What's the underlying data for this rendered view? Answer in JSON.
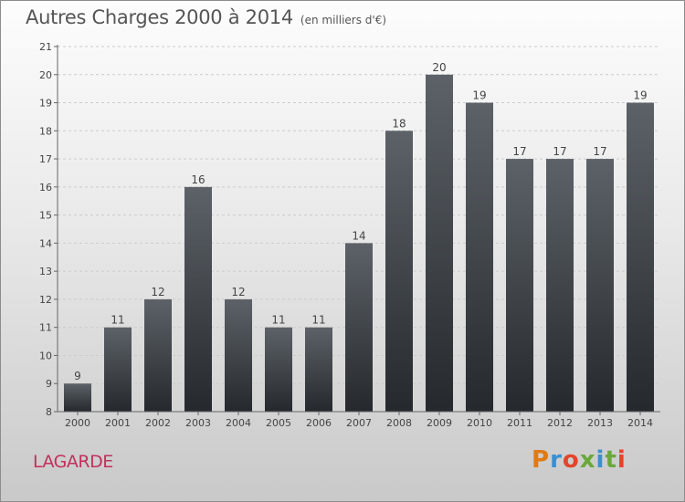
{
  "header": {
    "title": "Autres Charges 2000 à 2014",
    "subtitle": "(en milliers d'€)"
  },
  "footer": {
    "place": "LAGARDE",
    "logo_text": "Proxiti",
    "logo_colors": [
      "#e07b14",
      "#3a8fd1",
      "#e2452b",
      "#6aa83b",
      "#3a8fd1",
      "#6aa83b",
      "#e2452b"
    ]
  },
  "colors": {
    "bar_top": "#5d6268",
    "bar_bottom": "#25292d",
    "axis": "#666666",
    "grid": "#cccccc"
  },
  "chart_data": {
    "type": "bar",
    "title": "Autres Charges 2000 à 2014",
    "categories": [
      "2000",
      "2001",
      "2002",
      "2003",
      "2004",
      "2005",
      "2006",
      "2007",
      "2008",
      "2009",
      "2010",
      "2011",
      "2012",
      "2013",
      "2014"
    ],
    "values": [
      9,
      11,
      12,
      16,
      12,
      11,
      11,
      14,
      18,
      20,
      19,
      17,
      17,
      17,
      19
    ],
    "ylim": [
      8,
      21
    ],
    "yticks": [
      8,
      9,
      10,
      11,
      12,
      13,
      14,
      15,
      16,
      17,
      18,
      19,
      20,
      21
    ],
    "grid": true,
    "data_labels": true
  }
}
